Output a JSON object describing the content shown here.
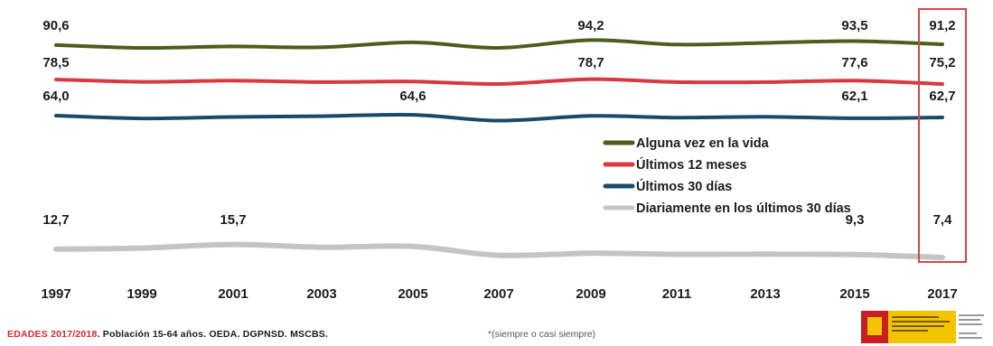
{
  "chart_data": {
    "type": "line",
    "x": [
      "1997",
      "1999",
      "2001",
      "2003",
      "2005",
      "2007",
      "2009",
      "2011",
      "2013",
      "2015",
      "2017"
    ],
    "series": [
      {
        "name": "Alguna vez en la vida",
        "color": "#4b5e1b",
        "values": [
          90.6,
          88.6,
          89.6,
          89.0,
          92.6,
          88.6,
          94.2,
          91.0,
          92.2,
          93.5,
          91.2
        ],
        "labels": {
          "0": "90,6",
          "6": "94,2",
          "9": "93,5",
          "10": "91,2"
        }
      },
      {
        "name": "Últimos 12 meses",
        "color": "#d9393e",
        "values": [
          78.5,
          76.8,
          77.6,
          76.6,
          77.0,
          75.2,
          78.7,
          76.6,
          76.6,
          77.6,
          75.2
        ],
        "labels": {
          "0": "78,5",
          "6": "78,7",
          "9": "77,6",
          "10": "75,2"
        }
      },
      {
        "name": "Últimos 30 días",
        "color": "#1b4a66",
        "values": [
          64.0,
          62.0,
          63.0,
          63.6,
          64.6,
          60.4,
          63.8,
          62.6,
          63.2,
          62.1,
          62.7
        ],
        "labels": {
          "0": "64,0",
          "4": "64,6",
          "9": "62,1",
          "10": "62,7"
        }
      },
      {
        "name": "Diariamente en los últimos 30 días",
        "color": "#c4c4c4",
        "values": [
          12.7,
          13.4,
          15.7,
          13.9,
          14.4,
          8.8,
          10.1,
          9.4,
          9.5,
          9.3,
          7.4
        ],
        "labels": {
          "0": "12,7",
          "2": "15,7",
          "9": "9,3",
          "10": "7,4"
        }
      }
    ],
    "highlight_year": "2017"
  },
  "footer": {
    "source_title": "EDADES 2017/2018",
    "source_rest": ". Población 15-64 años. OEDA. DGPNSD. MSCBS.",
    "note": "*(siempre o casi siempre)"
  },
  "logo": {
    "text_main": "MINISTERIO DE SANIDAD, CONSUMO Y BIENESTAR SOCIAL",
    "text_sub": "SECRETARÍA DE ESTADO DE SERVICIOS SOCIALES"
  }
}
